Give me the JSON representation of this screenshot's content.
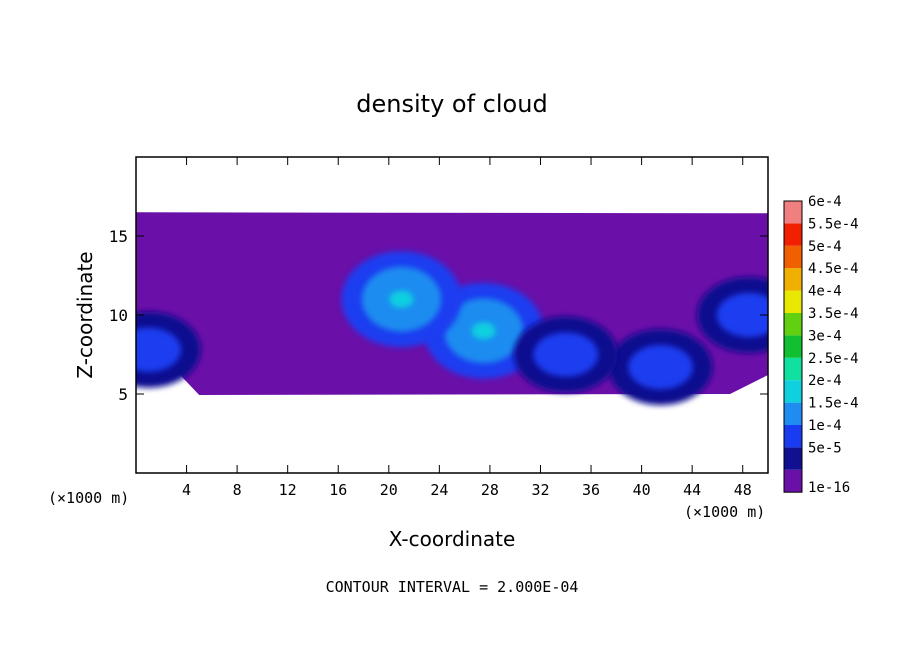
{
  "chart_data": {
    "type": "heatmap",
    "title": "density of cloud",
    "xlabel": "X-coordinate",
    "ylabel": "Z-coordinate",
    "x_unit_left": "(×1000 m)",
    "x_unit_right": "(×1000 m)",
    "xlim": [
      0,
      50
    ],
    "ylim": [
      0,
      20
    ],
    "x_ticks": [
      4,
      8,
      12,
      16,
      20,
      24,
      28,
      32,
      36,
      40,
      44,
      48
    ],
    "y_ticks": [
      5,
      10,
      15
    ],
    "footer": "CONTOUR INTERVAL = 2.000E-04",
    "colorbar": {
      "labels": [
        "1e-16",
        "5e-5",
        "1e-4",
        "1.5e-4",
        "2e-4",
        "2.5e-4",
        "3e-4",
        "3.5e-4",
        "4e-4",
        "4.5e-4",
        "5e-4",
        "5.5e-4",
        "6e-4"
      ],
      "colors": [
        "#6a0fa8",
        "#101090",
        "#1a3cf0",
        "#1f8cf0",
        "#10d0e0",
        "#10e0a0",
        "#10c030",
        "#60d010",
        "#e8e800",
        "#f0b000",
        "#f06000",
        "#f02000",
        "#f08080"
      ]
    },
    "field": {
      "background_level": "1e-16",
      "cloud_base_z": 5,
      "cloud_top_z": 16.5,
      "features": [
        {
          "x": 27.5,
          "z": 9.0,
          "level": "1.5e-4"
        },
        {
          "x": 21.0,
          "z": 11.0,
          "level": "1.5e-4"
        },
        {
          "x": 41.5,
          "z": 6.7,
          "level": "1e-4"
        },
        {
          "x": 48.5,
          "z": 10.0,
          "level": "1e-4"
        },
        {
          "x": 1.0,
          "z": 7.8,
          "level": "1e-4"
        },
        {
          "x": 34.0,
          "z": 7.5,
          "level": "1e-4"
        }
      ]
    }
  }
}
